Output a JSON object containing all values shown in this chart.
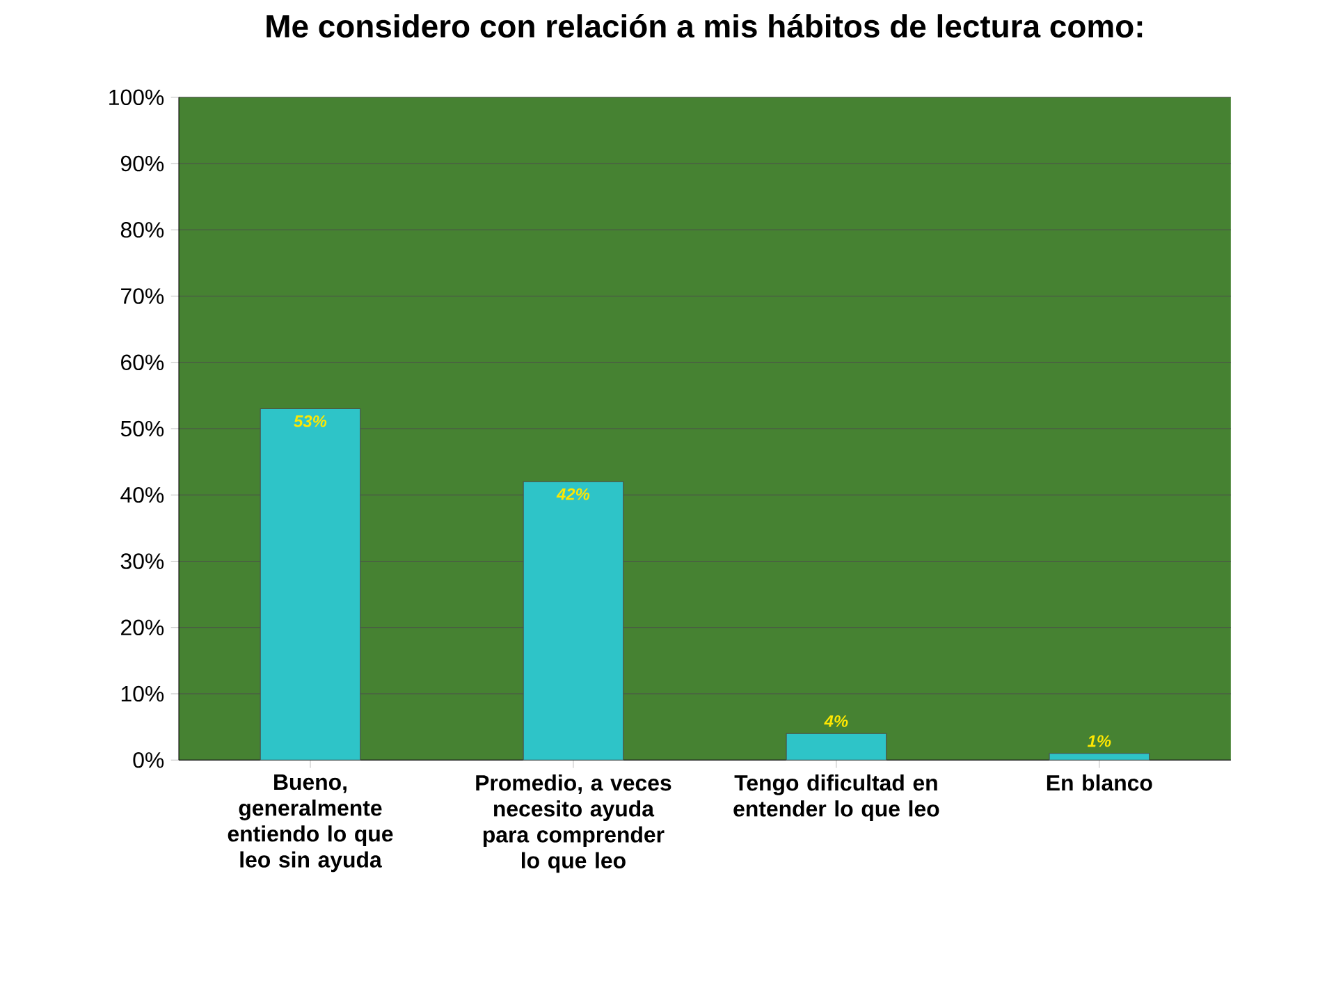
{
  "chart_data": {
    "type": "bar",
    "title": "Me considero con relación a mis hábitos de lectura como:",
    "categories": [
      "Bueno, generalmente entiendo lo que leo sin ayuda",
      "Promedio, a veces necesito ayuda para comprender lo que leo",
      "Tengo dificultad en entender lo que leo",
      "En blanco"
    ],
    "values": [
      53,
      42,
      4,
      1
    ],
    "value_labels": [
      "53%",
      "42%",
      "4%",
      "1%"
    ],
    "color": "#2ec4c8",
    "ylim": [
      0,
      100
    ],
    "yticks": [
      {
        "value": 0,
        "label": "0%"
      },
      {
        "value": 10,
        "label": "10%"
      },
      {
        "value": 20,
        "label": "20%"
      },
      {
        "value": 30,
        "label": "30%"
      },
      {
        "value": 40,
        "label": "40%"
      },
      {
        "value": 50,
        "label": "50%"
      },
      {
        "value": 60,
        "label": "60%"
      },
      {
        "value": 70,
        "label": "70%"
      },
      {
        "value": 80,
        "label": "80%"
      },
      {
        "value": 90,
        "label": "90%"
      },
      {
        "value": 100,
        "label": "100%"
      }
    ],
    "grid": "y"
  }
}
